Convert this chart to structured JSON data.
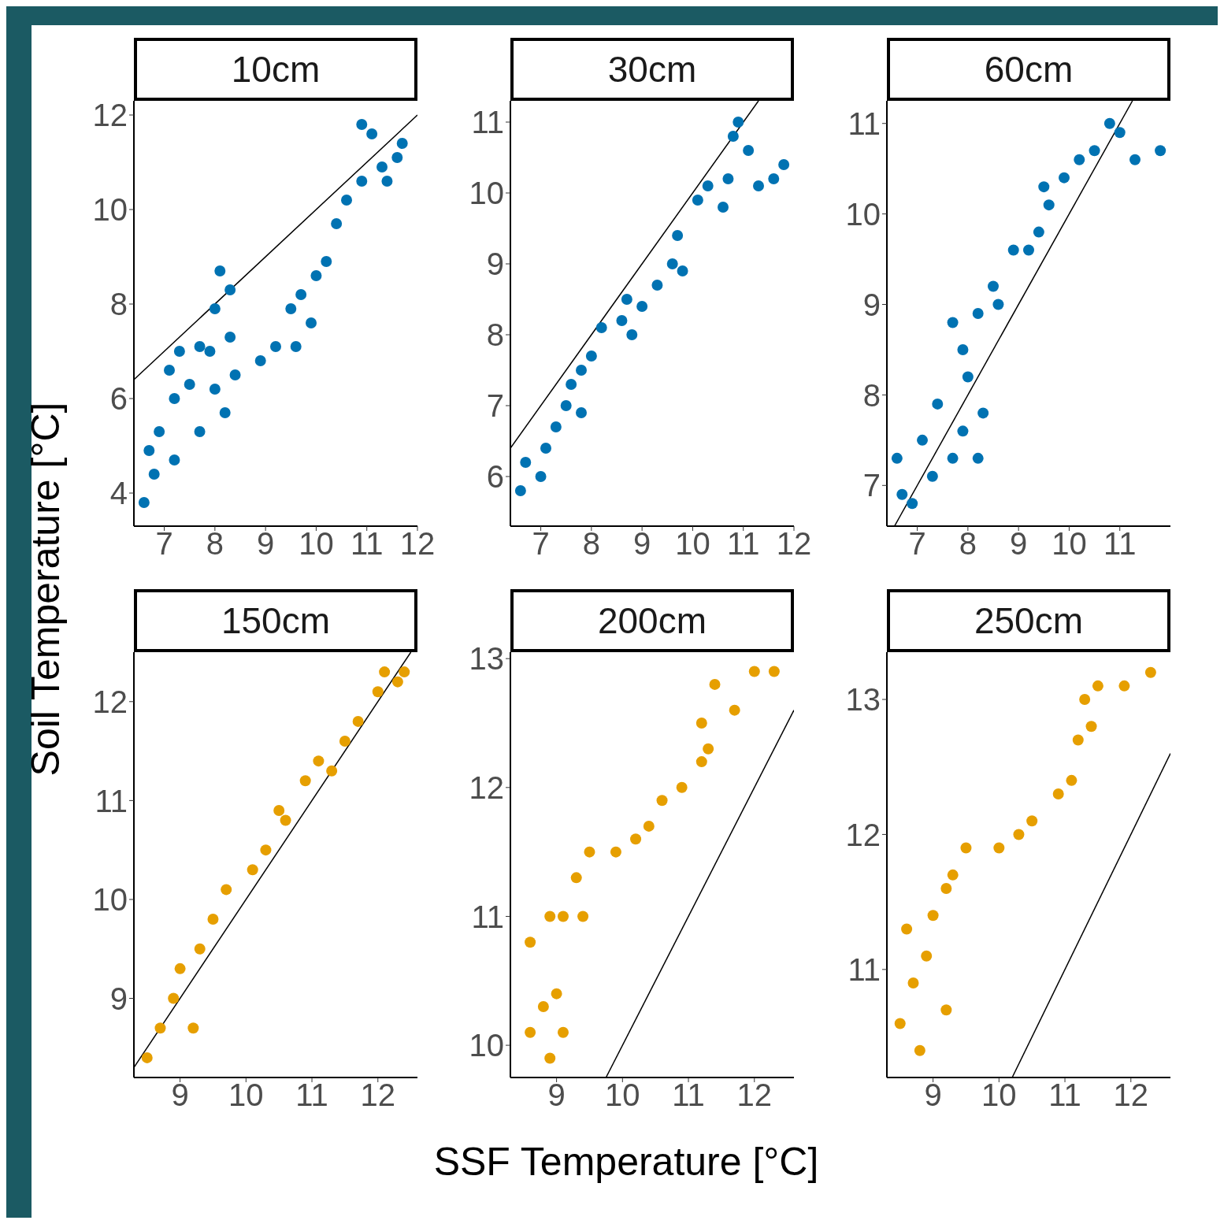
{
  "chart_data": [
    {
      "type": "scatter",
      "title": "10cm",
      "ylabel": "Soil Temperature [°C]",
      "xlim": [
        6.4,
        12.0
      ],
      "xticks": [
        7,
        8,
        9,
        10,
        11,
        12
      ],
      "ylim": [
        3.3,
        12.3
      ],
      "yticks": [
        4,
        6,
        8,
        10,
        12
      ],
      "series": [
        {
          "type": "scatter",
          "marker": "circle",
          "color": "#0072b2",
          "x": [
            6.6,
            6.8,
            6.7,
            6.9,
            7.2,
            7.1,
            7.3,
            7.7,
            7.5,
            7.2,
            7.7,
            8.0,
            7.9,
            8.0,
            8.1,
            8.3,
            8.3,
            8.2,
            8.4,
            8.9,
            9.2,
            9.5,
            9.7,
            9.6,
            9.9,
            10.0,
            10.2,
            10.4,
            10.6,
            10.9,
            10.9,
            11.1,
            11.3,
            11.6,
            11.7,
            11.4
          ],
          "values": [
            3.8,
            4.4,
            4.9,
            5.3,
            6.0,
            6.6,
            7.0,
            7.1,
            6.3,
            4.7,
            5.3,
            6.2,
            7.0,
            7.9,
            8.7,
            8.3,
            7.3,
            5.7,
            6.5,
            6.8,
            7.1,
            7.9,
            8.2,
            7.1,
            7.6,
            8.6,
            8.9,
            9.7,
            10.2,
            10.6,
            11.8,
            11.6,
            10.9,
            11.1,
            11.4,
            10.6
          ]
        },
        {
          "type": "line",
          "color": "#000000",
          "x": [
            6.4,
            12.0
          ],
          "values": [
            6.4,
            12.0
          ]
        }
      ]
    },
    {
      "type": "scatter",
      "title": "30cm",
      "xlim": [
        6.4,
        12.0
      ],
      "xticks": [
        7,
        8,
        9,
        10,
        11,
        12
      ],
      "ylim": [
        5.3,
        11.3
      ],
      "yticks": [
        6,
        7,
        8,
        9,
        10,
        11
      ],
      "series": [
        {
          "type": "scatter",
          "marker": "circle",
          "color": "#0072b2",
          "x": [
            6.6,
            6.7,
            7.0,
            7.1,
            7.3,
            7.5,
            7.6,
            7.8,
            7.8,
            8.0,
            8.2,
            8.6,
            8.8,
            8.7,
            9.0,
            9.3,
            9.6,
            9.8,
            9.7,
            10.1,
            10.3,
            10.6,
            10.7,
            10.8,
            10.9,
            11.1,
            11.3,
            11.6,
            11.8
          ],
          "values": [
            5.8,
            6.2,
            6.0,
            6.4,
            6.7,
            7.0,
            7.3,
            7.5,
            6.9,
            7.7,
            8.1,
            8.2,
            8.0,
            8.5,
            8.4,
            8.7,
            9.0,
            8.9,
            9.4,
            9.9,
            10.1,
            9.8,
            10.2,
            10.8,
            11.0,
            10.6,
            10.1,
            10.2,
            10.4
          ]
        },
        {
          "type": "line",
          "color": "#000000",
          "x": [
            6.4,
            11.3
          ],
          "values": [
            6.4,
            11.3
          ]
        }
      ]
    },
    {
      "type": "scatter",
      "title": "60cm",
      "xlim": [
        6.4,
        12.0
      ],
      "xticks": [
        7,
        8,
        9,
        10,
        11
      ],
      "ylim": [
        6.55,
        11.25
      ],
      "yticks": [
        7,
        8,
        9,
        10,
        11
      ],
      "series": [
        {
          "type": "scatter",
          "marker": "circle",
          "color": "#0072b2",
          "x": [
            6.7,
            6.6,
            6.9,
            7.3,
            7.1,
            7.4,
            7.7,
            7.9,
            8.2,
            8.3,
            8.0,
            7.9,
            7.7,
            8.2,
            8.6,
            8.5,
            8.9,
            9.2,
            9.4,
            9.6,
            9.5,
            9.9,
            10.2,
            10.5,
            10.8,
            11.0,
            11.3,
            11.8
          ],
          "values": [
            6.9,
            7.3,
            6.8,
            7.1,
            7.5,
            7.9,
            7.3,
            7.6,
            7.3,
            7.8,
            8.2,
            8.5,
            8.8,
            8.9,
            9.0,
            9.2,
            9.6,
            9.6,
            9.8,
            10.1,
            10.3,
            10.4,
            10.6,
            10.7,
            11.0,
            10.9,
            10.6,
            10.7
          ]
        },
        {
          "type": "line",
          "color": "#000000",
          "x": [
            6.55,
            11.25
          ],
          "values": [
            6.55,
            11.25
          ]
        }
      ]
    },
    {
      "type": "scatter",
      "title": "150cm",
      "xlim": [
        8.3,
        12.6
      ],
      "xticks": [
        9,
        10,
        11,
        12
      ],
      "ylim": [
        8.2,
        12.5
      ],
      "yticks": [
        9,
        10,
        11,
        12
      ],
      "series": [
        {
          "type": "scatter",
          "marker": "circle",
          "color": "#e69f00",
          "x": [
            8.5,
            8.7,
            8.9,
            9.0,
            9.2,
            9.3,
            9.5,
            9.7,
            10.1,
            10.3,
            10.5,
            10.6,
            10.9,
            11.1,
            11.3,
            11.5,
            11.7,
            12.0,
            12.1,
            12.3,
            12.4
          ],
          "values": [
            8.4,
            8.7,
            9.0,
            9.3,
            8.7,
            9.5,
            9.8,
            10.1,
            10.3,
            10.5,
            10.9,
            10.8,
            11.2,
            11.4,
            11.3,
            11.6,
            11.8,
            12.1,
            12.3,
            12.2,
            12.3
          ]
        },
        {
          "type": "line",
          "color": "#000000",
          "x": [
            8.3,
            12.5
          ],
          "values": [
            8.3,
            12.5
          ]
        }
      ]
    },
    {
      "type": "scatter",
      "title": "200cm",
      "xlabel": "SSF Temperature [°C]",
      "xlim": [
        8.3,
        12.6
      ],
      "xticks": [
        9,
        10,
        11,
        12
      ],
      "ylim": [
        9.75,
        13.05
      ],
      "yticks": [
        10,
        11,
        12,
        13
      ],
      "series": [
        {
          "type": "scatter",
          "marker": "circle",
          "color": "#e69f00",
          "x": [
            8.6,
            8.9,
            8.8,
            9.0,
            9.1,
            8.6,
            8.9,
            9.1,
            9.4,
            9.3,
            9.5,
            9.9,
            10.2,
            10.4,
            10.6,
            10.9,
            11.2,
            11.3,
            11.2,
            11.4,
            11.7,
            12.0,
            12.3
          ],
          "values": [
            10.1,
            9.9,
            10.3,
            10.4,
            10.1,
            10.8,
            11.0,
            11.0,
            11.0,
            11.3,
            11.5,
            11.5,
            11.6,
            11.7,
            11.9,
            12.0,
            12.2,
            12.3,
            12.5,
            12.8,
            12.6,
            12.9,
            12.9
          ]
        },
        {
          "type": "line",
          "color": "#000000",
          "x": [
            9.75,
            12.6
          ],
          "values": [
            9.75,
            12.6
          ]
        }
      ]
    },
    {
      "type": "scatter",
      "title": "250cm",
      "xlim": [
        8.3,
        12.6
      ],
      "xticks": [
        9,
        10,
        11,
        12
      ],
      "ylim": [
        10.2,
        13.35
      ],
      "yticks": [
        11,
        12,
        13
      ],
      "series": [
        {
          "type": "scatter",
          "marker": "circle",
          "color": "#e69f00",
          "x": [
            8.8,
            8.5,
            8.7,
            8.6,
            8.9,
            9.2,
            9.0,
            9.2,
            9.3,
            9.5,
            10.0,
            10.3,
            10.5,
            10.9,
            11.1,
            11.2,
            11.3,
            11.4,
            11.5,
            11.9,
            12.3
          ],
          "values": [
            10.4,
            10.6,
            10.9,
            11.3,
            11.1,
            10.7,
            11.4,
            11.6,
            11.7,
            11.9,
            11.9,
            12.0,
            12.1,
            12.3,
            12.4,
            12.7,
            13.0,
            12.8,
            13.1,
            13.1,
            13.2
          ]
        },
        {
          "type": "line",
          "color": "#000000",
          "x": [
            10.2,
            12.6
          ],
          "values": [
            10.2,
            12.6
          ]
        }
      ]
    }
  ]
}
